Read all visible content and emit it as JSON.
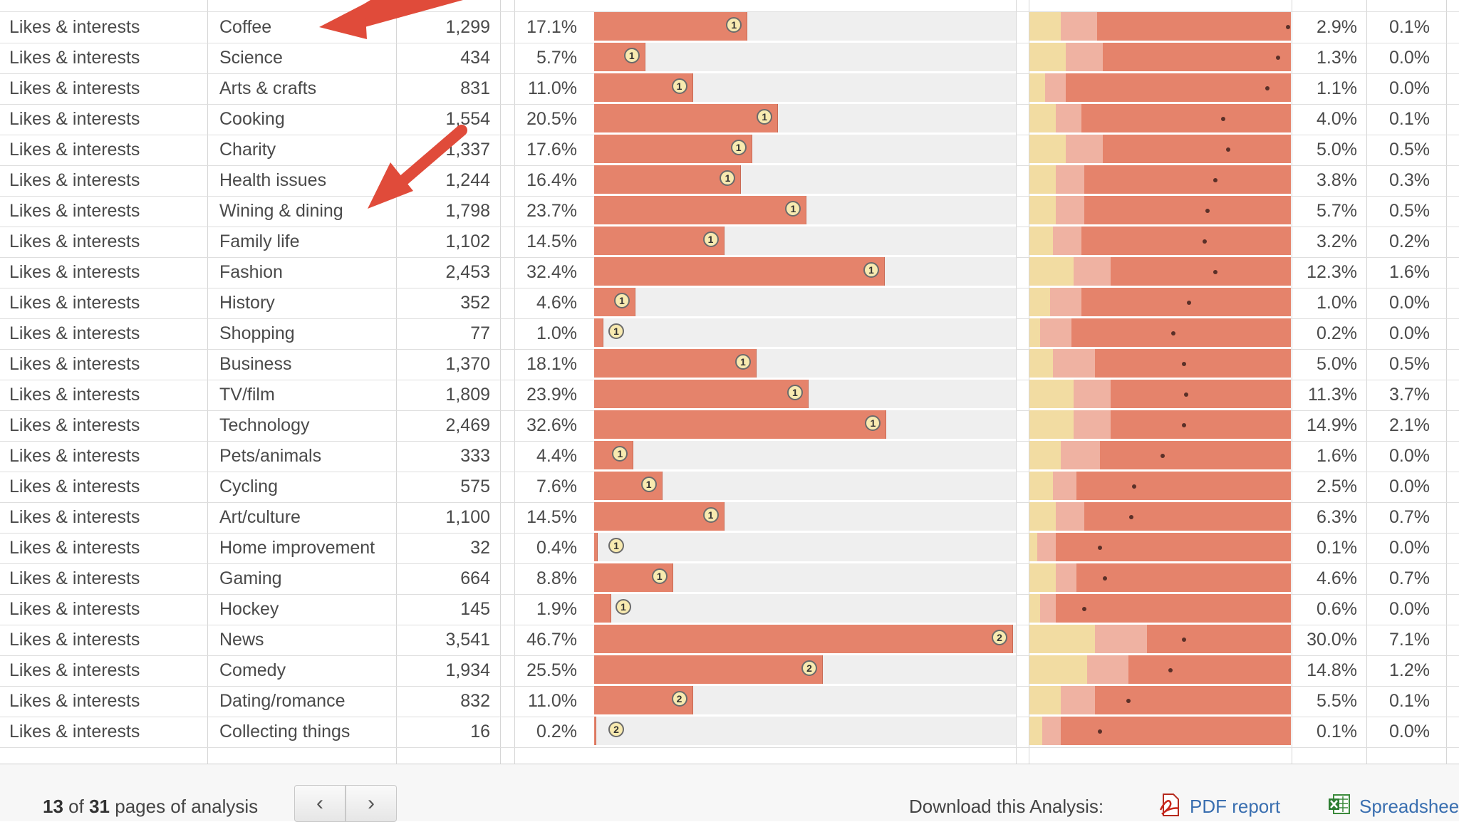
{
  "rows": [
    {
      "category": "Likes & interests",
      "interest": "Coffee",
      "count": "1,299",
      "pct": "17.1%",
      "pct_value": 17.1,
      "badge": "1",
      "seg_yellow": 0.12,
      "seg_pink": 0.14,
      "dot": 0.99,
      "p1": "2.9%",
      "p2": "0.1%"
    },
    {
      "category": "Likes & interests",
      "interest": "Science",
      "count": "434",
      "pct": "5.7%",
      "pct_value": 5.7,
      "badge": "1",
      "seg_yellow": 0.14,
      "seg_pink": 0.14,
      "dot": 0.95,
      "p1": "1.3%",
      "p2": "0.0%"
    },
    {
      "category": "Likes & interests",
      "interest": "Arts & crafts",
      "count": "831",
      "pct": "11.0%",
      "pct_value": 11.0,
      "badge": "1",
      "seg_yellow": 0.06,
      "seg_pink": 0.08,
      "dot": 0.91,
      "p1": "1.1%",
      "p2": "0.0%"
    },
    {
      "category": "Likes & interests",
      "interest": "Cooking",
      "count": "1,554",
      "pct": "20.5%",
      "pct_value": 20.5,
      "badge": "1",
      "seg_yellow": 0.1,
      "seg_pink": 0.1,
      "dot": 0.74,
      "p1": "4.0%",
      "p2": "0.1%"
    },
    {
      "category": "Likes & interests",
      "interest": "Charity",
      "count": "1,337",
      "pct": "17.6%",
      "pct_value": 17.6,
      "badge": "1",
      "seg_yellow": 0.14,
      "seg_pink": 0.14,
      "dot": 0.76,
      "p1": "5.0%",
      "p2": "0.5%"
    },
    {
      "category": "Likes & interests",
      "interest": "Health issues",
      "count": "1,244",
      "pct": "16.4%",
      "pct_value": 16.4,
      "badge": "1",
      "seg_yellow": 0.1,
      "seg_pink": 0.11,
      "dot": 0.71,
      "p1": "3.8%",
      "p2": "0.3%"
    },
    {
      "category": "Likes & interests",
      "interest": "Wining & dining",
      "count": "1,798",
      "pct": "23.7%",
      "pct_value": 23.7,
      "badge": "1",
      "seg_yellow": 0.1,
      "seg_pink": 0.11,
      "dot": 0.68,
      "p1": "5.7%",
      "p2": "0.5%"
    },
    {
      "category": "Likes & interests",
      "interest": "Family life",
      "count": "1,102",
      "pct": "14.5%",
      "pct_value": 14.5,
      "badge": "1",
      "seg_yellow": 0.09,
      "seg_pink": 0.11,
      "dot": 0.67,
      "p1": "3.2%",
      "p2": "0.2%"
    },
    {
      "category": "Likes & interests",
      "interest": "Fashion",
      "count": "2,453",
      "pct": "32.4%",
      "pct_value": 32.4,
      "badge": "1",
      "seg_yellow": 0.17,
      "seg_pink": 0.14,
      "dot": 0.71,
      "p1": "12.3%",
      "p2": "1.6%"
    },
    {
      "category": "Likes & interests",
      "interest": "History",
      "count": "352",
      "pct": "4.6%",
      "pct_value": 4.6,
      "badge": "1",
      "seg_yellow": 0.08,
      "seg_pink": 0.12,
      "dot": 0.61,
      "p1": "1.0%",
      "p2": "0.0%"
    },
    {
      "category": "Likes & interests",
      "interest": "Shopping",
      "count": "77",
      "pct": "1.0%",
      "pct_value": 1.0,
      "badge": "1",
      "seg_yellow": 0.04,
      "seg_pink": 0.12,
      "dot": 0.55,
      "p1": "0.2%",
      "p2": "0.0%"
    },
    {
      "category": "Likes & interests",
      "interest": "Business",
      "count": "1,370",
      "pct": "18.1%",
      "pct_value": 18.1,
      "badge": "1",
      "seg_yellow": 0.09,
      "seg_pink": 0.16,
      "dot": 0.59,
      "p1": "5.0%",
      "p2": "0.5%"
    },
    {
      "category": "Likes & interests",
      "interest": "TV/film",
      "count": "1,809",
      "pct": "23.9%",
      "pct_value": 23.9,
      "badge": "1",
      "seg_yellow": 0.17,
      "seg_pink": 0.14,
      "dot": 0.6,
      "p1": "11.3%",
      "p2": "3.7%"
    },
    {
      "category": "Likes & interests",
      "interest": "Technology",
      "count": "2,469",
      "pct": "32.6%",
      "pct_value": 32.6,
      "badge": "1",
      "seg_yellow": 0.17,
      "seg_pink": 0.14,
      "dot": 0.59,
      "p1": "14.9%",
      "p2": "2.1%"
    },
    {
      "category": "Likes & interests",
      "interest": "Pets/animals",
      "count": "333",
      "pct": "4.4%",
      "pct_value": 4.4,
      "badge": "1",
      "seg_yellow": 0.12,
      "seg_pink": 0.15,
      "dot": 0.51,
      "p1": "1.6%",
      "p2": "0.0%"
    },
    {
      "category": "Likes & interests",
      "interest": "Cycling",
      "count": "575",
      "pct": "7.6%",
      "pct_value": 7.6,
      "badge": "1",
      "seg_yellow": 0.09,
      "seg_pink": 0.09,
      "dot": 0.4,
      "p1": "2.5%",
      "p2": "0.0%"
    },
    {
      "category": "Likes & interests",
      "interest": "Art/culture",
      "count": "1,100",
      "pct": "14.5%",
      "pct_value": 14.5,
      "badge": "1",
      "seg_yellow": 0.1,
      "seg_pink": 0.11,
      "dot": 0.39,
      "p1": "6.3%",
      "p2": "0.7%"
    },
    {
      "category": "Likes & interests",
      "interest": "Home improvement",
      "count": "32",
      "pct": "0.4%",
      "pct_value": 0.4,
      "badge": "1",
      "seg_yellow": 0.03,
      "seg_pink": 0.07,
      "dot": 0.27,
      "p1": "0.1%",
      "p2": "0.0%"
    },
    {
      "category": "Likes & interests",
      "interest": "Gaming",
      "count": "664",
      "pct": "8.8%",
      "pct_value": 8.8,
      "badge": "1",
      "seg_yellow": 0.1,
      "seg_pink": 0.08,
      "dot": 0.29,
      "p1": "4.6%",
      "p2": "0.7%"
    },
    {
      "category": "Likes & interests",
      "interest": "Hockey",
      "count": "145",
      "pct": "1.9%",
      "pct_value": 1.9,
      "badge": "1",
      "seg_yellow": 0.04,
      "seg_pink": 0.06,
      "dot": 0.21,
      "p1": "0.6%",
      "p2": "0.0%"
    },
    {
      "category": "Likes & interests",
      "interest": "News",
      "count": "3,541",
      "pct": "46.7%",
      "pct_value": 46.7,
      "badge": "2",
      "seg_yellow": 0.25,
      "seg_pink": 0.2,
      "dot": 0.59,
      "p1": "30.0%",
      "p2": "7.1%"
    },
    {
      "category": "Likes & interests",
      "interest": "Comedy",
      "count": "1,934",
      "pct": "25.5%",
      "pct_value": 25.5,
      "badge": "2",
      "seg_yellow": 0.22,
      "seg_pink": 0.16,
      "dot": 0.54,
      "p1": "14.8%",
      "p2": "1.2%"
    },
    {
      "category": "Likes & interests",
      "interest": "Dating/romance",
      "count": "832",
      "pct": "11.0%",
      "pct_value": 11.0,
      "badge": "2",
      "seg_yellow": 0.12,
      "seg_pink": 0.13,
      "dot": 0.38,
      "p1": "5.5%",
      "p2": "0.1%"
    },
    {
      "category": "Likes & interests",
      "interest": "Collecting things",
      "count": "16",
      "pct": "0.2%",
      "pct_value": 0.2,
      "badge": "2",
      "seg_yellow": 0.05,
      "seg_pink": 0.07,
      "dot": 0.27,
      "p1": "0.1%",
      "p2": "0.0%"
    }
  ],
  "footer": {
    "page_current": "13",
    "page_of": "of",
    "page_total": "31",
    "page_suffix": "pages of analysis",
    "prev_label": "‹",
    "next_label": "›",
    "download_label": "Download this Analysis:",
    "pdf_label": "PDF report",
    "xls_label": "Spreadshee"
  },
  "colors": {
    "bar": "#e5836b",
    "track": "#efefef",
    "seg_yellow": "#f2dca2",
    "seg_pink": "#efb2a2",
    "arrow": "#e04b3a",
    "link": "#3a6fb0"
  },
  "icons": {
    "pdf": "pdf-icon",
    "xls": "spreadsheet-icon",
    "prev": "chevron-left-icon",
    "next": "chevron-right-icon"
  }
}
